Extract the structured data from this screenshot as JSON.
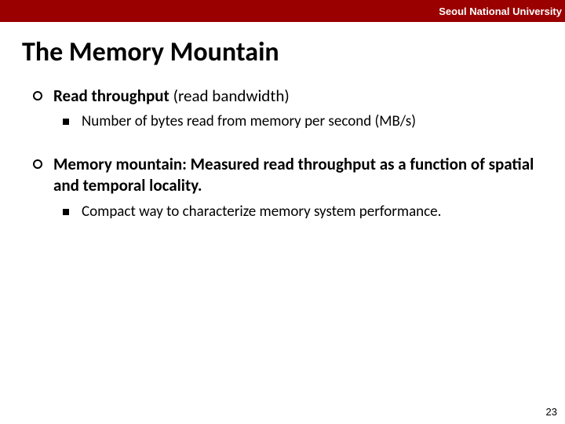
{
  "header": {
    "org": "Seoul National University"
  },
  "title": "The Memory Mountain",
  "bullets": [
    {
      "text_bold": "Read throughput",
      "text_rest": " (read bandwidth)",
      "sub": [
        "Number of bytes read from memory per second (MB/s)"
      ]
    },
    {
      "text_bold": "Memory mountain:",
      "text_rest": " Measured read throughput as a function of spatial and temporal locality.",
      "all_bold": true,
      "sub": [
        "Compact way to characterize memory system performance."
      ]
    }
  ],
  "page": "23",
  "colors": {
    "header_bg": "#9a0000",
    "header_text": "#ffffff",
    "body_text": "#000000",
    "background": "#ffffff"
  }
}
